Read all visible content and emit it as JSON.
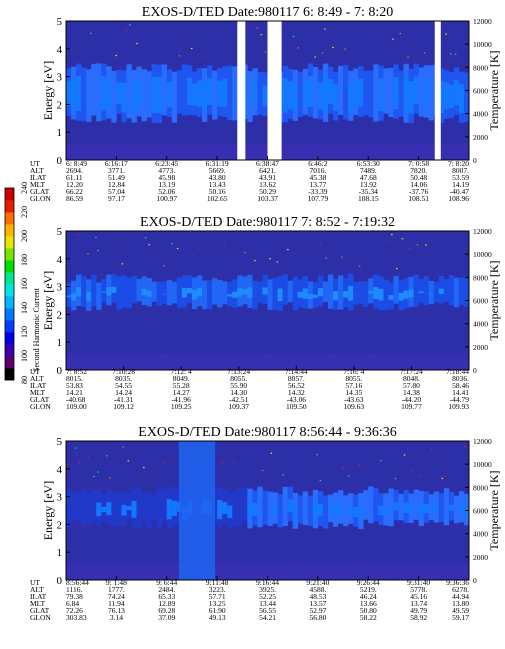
{
  "colorbar": {
    "label": "Second Harmonic Current",
    "ticks": [
      "80",
      "100",
      "120",
      "140",
      "160",
      "180",
      "200",
      "220",
      "240"
    ],
    "palette": [
      "#000000",
      "#5a006e",
      "#3a00b4",
      "#0000e6",
      "#003cff",
      "#0078ff",
      "#00b4ff",
      "#00e6e6",
      "#00e68c",
      "#00dc00",
      "#78e600",
      "#e6e600",
      "#ffb400",
      "#ff6e00",
      "#e61e00",
      "#c80000"
    ]
  },
  "chart_data": [
    {
      "type": "heatmap",
      "title": "EXOS-D/TED    Date:980117  6: 8:49 - 7: 8:20",
      "ylabel": "Energy [eV]",
      "y2label": "Temperature [K]",
      "ylim": [
        0,
        5
      ],
      "y2lim": [
        0,
        12000
      ],
      "yticks": [
        "0",
        "1",
        "2",
        "3",
        "4",
        "5"
      ],
      "y2ticks": [
        "0",
        "2000",
        "4000",
        "6000",
        "8000",
        "10000",
        "12000"
      ],
      "data_gaps": [
        [
          0.425,
          0.445
        ],
        [
          0.5,
          0.535
        ],
        [
          0.915,
          0.93
        ]
      ],
      "band_low": 1.5,
      "band_high": 3.3,
      "ephemeris": {
        "labels": [
          "UT",
          "ALT",
          "ILAT",
          "MLT",
          "GLAT",
          "GLON"
        ],
        "columns": [
          [
            "6: 8:49",
            "2694.",
            "61.11",
            "12.20",
            "66.22",
            "86.59"
          ],
          [
            "6:16:17",
            "3771.",
            "51.49",
            "12.84",
            "57.04",
            "97.17"
          ],
          [
            "6:23:45",
            "4773.",
            "45.98",
            "13.19",
            "52.06",
            "100.97"
          ],
          [
            "6:31:19",
            "5669.",
            "43.80",
            "13.43",
            "50.16",
            "102.65"
          ],
          [
            "6:38:47",
            "6421.",
            "43.91",
            "13.62",
            "50.29",
            "103.37"
          ],
          [
            "6:46:2",
            "7016.",
            "45.38",
            "13.77",
            "-33.39",
            "107.79"
          ],
          [
            "6:53:30",
            "7489.",
            "47.68",
            "13.92",
            "-35.34",
            "108.15"
          ],
          [
            "7: 0:58",
            "7820.",
            "50.48",
            "14.06",
            "-37.76",
            "108.51"
          ],
          [
            "7: 8:20",
            "8007.",
            "53.59",
            "14.19",
            "-40.47",
            "108.96"
          ]
        ]
      }
    },
    {
      "type": "heatmap",
      "title": "EXOS-D/TED    Date:980117  7: 8:52 - 7:19:32",
      "ylabel": "Energy [eV]",
      "y2label": "Temperature [K]",
      "ylim": [
        0,
        5
      ],
      "y2lim": [
        0,
        12000
      ],
      "yticks": [
        "0",
        "1",
        "2",
        "3",
        "4",
        "5"
      ],
      "y2ticks": [
        "0",
        "2000",
        "4000",
        "6000",
        "8000",
        "10000",
        "12000"
      ],
      "data_gaps": [],
      "band_low": 2.3,
      "band_high": 3.3,
      "ephemeris": {
        "labels": [
          "UT",
          "ALT",
          "ILAT",
          "MLT",
          "GLAT",
          "GLON"
        ],
        "columns": [
          [
            "7: 8:52",
            "8015.",
            "53.83",
            "14.21",
            "-40.68",
            "109.00"
          ],
          [
            "7:10:28",
            "8035.",
            "54.55",
            "14.24",
            "-41.31",
            "109.12"
          ],
          [
            "7:12: 4",
            "8049.",
            "55.28",
            "14.27",
            "-41.96",
            "109.25"
          ],
          [
            "7:13:24",
            "8055.",
            "55.90",
            "14.30",
            "-42.51",
            "109.37"
          ],
          [
            "7:14:44",
            "8057.",
            "56.52",
            "14.32",
            "-43.06",
            "109.50"
          ],
          [
            "7:16: 4",
            "8055.",
            "57.16",
            "14.35",
            "-43.63",
            "109.63"
          ],
          [
            "7:17:24",
            "8048.",
            "57.80",
            "14.38",
            "-44.20",
            "109.77"
          ],
          [
            "7:18:44",
            "8036.",
            "58.46",
            "14.41",
            "-44.79",
            "109.93"
          ]
        ]
      }
    },
    {
      "type": "heatmap",
      "title": "EXOS-D/TED    Date:980117  8:56:44 - 9:36:36",
      "ylabel": "Energy [eV]",
      "y2label": "Temperature [K]",
      "ylim": [
        0,
        5
      ],
      "y2lim": [
        0,
        12000
      ],
      "yticks": [
        "0",
        "1",
        "2",
        "3",
        "4",
        "5"
      ],
      "y2ticks": [
        "0",
        "2000",
        "4000",
        "6000",
        "8000",
        "10000",
        "12000"
      ],
      "data_gaps": [],
      "band_low": 2.0,
      "band_high": 3.2,
      "ephemeris": {
        "labels": [
          "UT",
          "ALT",
          "ILAT",
          "MLT",
          "GLAT",
          "GLON"
        ],
        "columns": [
          [
            "8:56:44",
            "1116.",
            "79.38",
            "6.84",
            "72.26",
            "303.83"
          ],
          [
            "9: 1:48",
            "1777.",
            "74.24",
            "11.94",
            "76.13",
            "3.14"
          ],
          [
            "9: 6:44",
            "2484.",
            "65.33",
            "12.89",
            "69.28",
            "37.09"
          ],
          [
            "9:11:48",
            "3223.",
            "57.71",
            "13.25",
            "61.90",
            "49.13"
          ],
          [
            "9:16:44",
            "3925.",
            "52.25",
            "13.44",
            "56.55",
            "54.21"
          ],
          [
            "9:21:40",
            "4588.",
            "48.53",
            "13.57",
            "52.97",
            "56.80"
          ],
          [
            "9:26:44",
            "5219.",
            "46.24",
            "13.66",
            "50.80",
            "58.22"
          ],
          [
            "9:31:40",
            "5778.",
            "45.16",
            "13.74",
            "49.79",
            "58.92"
          ],
          [
            "9:36:36",
            "6278.",
            "44.94",
            "13.80",
            "49.59",
            "59.17"
          ]
        ]
      }
    }
  ]
}
